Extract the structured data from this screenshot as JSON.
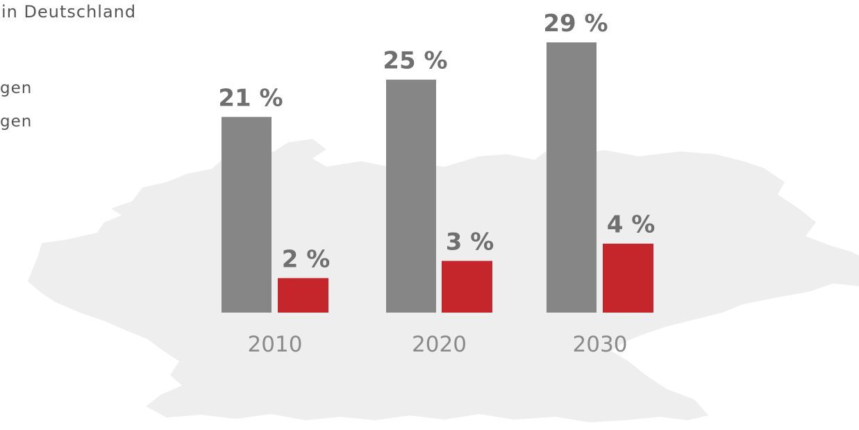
{
  "header": {
    "title": "in Deutschland",
    "legend_lines": [
      "gen",
      "gen"
    ]
  },
  "colors": {
    "gray_bar": "#868686",
    "red_bar": "#c4262c",
    "map_fill": "#eeeeee",
    "label_gray": "#6f6f6f",
    "label_red": "#6f6f6f",
    "year_text": "#8a8a8a"
  },
  "chart_data": {
    "type": "bar",
    "categories": [
      "2010",
      "2020",
      "2030"
    ],
    "series": [
      {
        "values": [
          21,
          25,
          29
        ],
        "labels": [
          "21 %",
          "25 %",
          "29 %"
        ]
      },
      {
        "values": [
          2,
          3,
          4
        ],
        "labels": [
          "2 %",
          "3 %",
          "4 %"
        ]
      }
    ],
    "ylim": [
      0,
      30
    ],
    "unit": "%",
    "grid": false,
    "background_shape": "map-of-germany"
  }
}
